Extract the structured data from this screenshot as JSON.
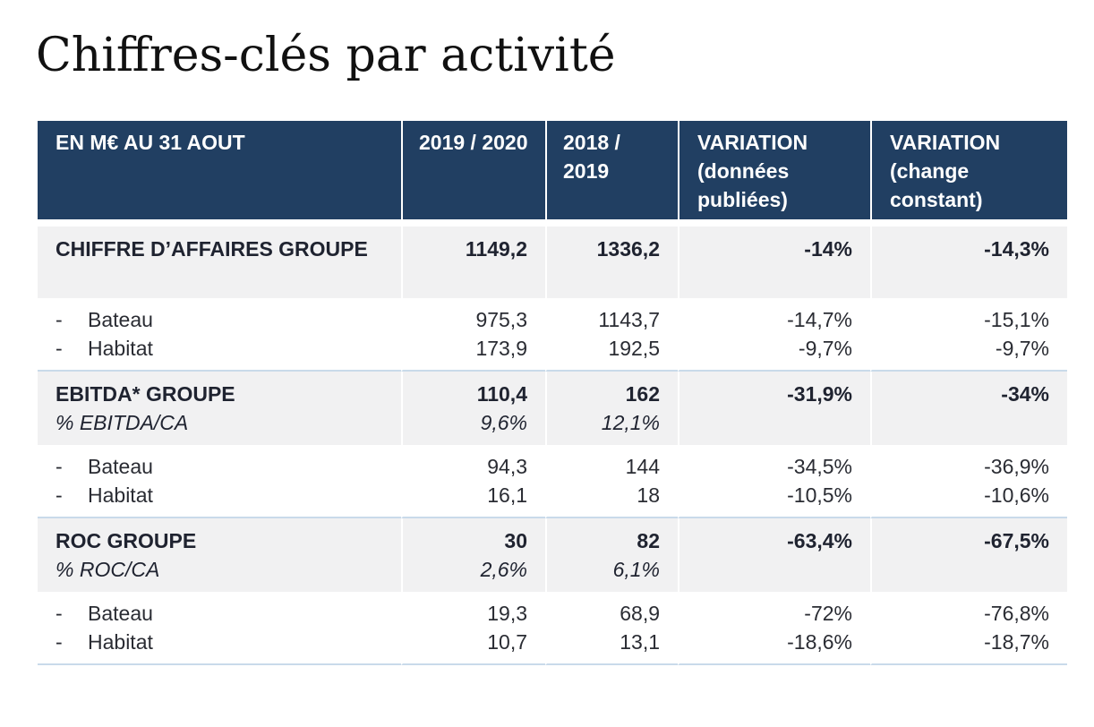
{
  "title": "Chiffres-clés par activité",
  "table": {
    "headers": [
      "EN M€ AU 31 AOUT",
      "2019 / 2020",
      "2018 / 2019",
      "VARIATION (données publiées)",
      "VARIATION (change constant)"
    ],
    "dash": "-",
    "groups": [
      {
        "label": "CHIFFRE D’AFFAIRES GROUPE",
        "sublabel": "",
        "values": [
          "1149,2",
          "1336,2",
          "-14%",
          "-14,3%"
        ],
        "subvalues": [
          "",
          "",
          "",
          ""
        ],
        "rows": [
          {
            "label": "Bateau",
            "values": [
              "975,3",
              "1143,7",
              "-14,7%",
              "-15,1%"
            ]
          },
          {
            "label": "Habitat",
            "values": [
              "173,9",
              "192,5",
              "-9,7%",
              "-9,7%"
            ]
          }
        ]
      },
      {
        "label": "EBITDA* GROUPE",
        "sublabel": "% EBITDA/CA",
        "values": [
          "110,4",
          "162",
          "-31,9%",
          "-34%"
        ],
        "subvalues": [
          "9,6%",
          "12,1%",
          "",
          ""
        ],
        "rows": [
          {
            "label": "Bateau",
            "values": [
              "94,3",
              "144",
              "-34,5%",
              "-36,9%"
            ]
          },
          {
            "label": "Habitat",
            "values": [
              "16,1",
              "18",
              "-10,5%",
              "-10,6%"
            ]
          }
        ]
      },
      {
        "label": "ROC GROUPE",
        "sublabel": "% ROC/CA",
        "values": [
          "30",
          "82",
          "-63,4%",
          "-67,5%"
        ],
        "subvalues": [
          "2,6%",
          "6,1%",
          "",
          ""
        ],
        "rows": [
          {
            "label": "Bateau",
            "values": [
              "19,3",
              "68,9",
              "-72%",
              "-76,8%"
            ]
          },
          {
            "label": "Habitat",
            "values": [
              "10,7",
              "13,1",
              "-18,6%",
              "-18,7%"
            ]
          }
        ]
      }
    ]
  },
  "colors": {
    "header_bg": "#213f62",
    "group_bg": "#f1f1f2",
    "separator": "#c9daea"
  }
}
